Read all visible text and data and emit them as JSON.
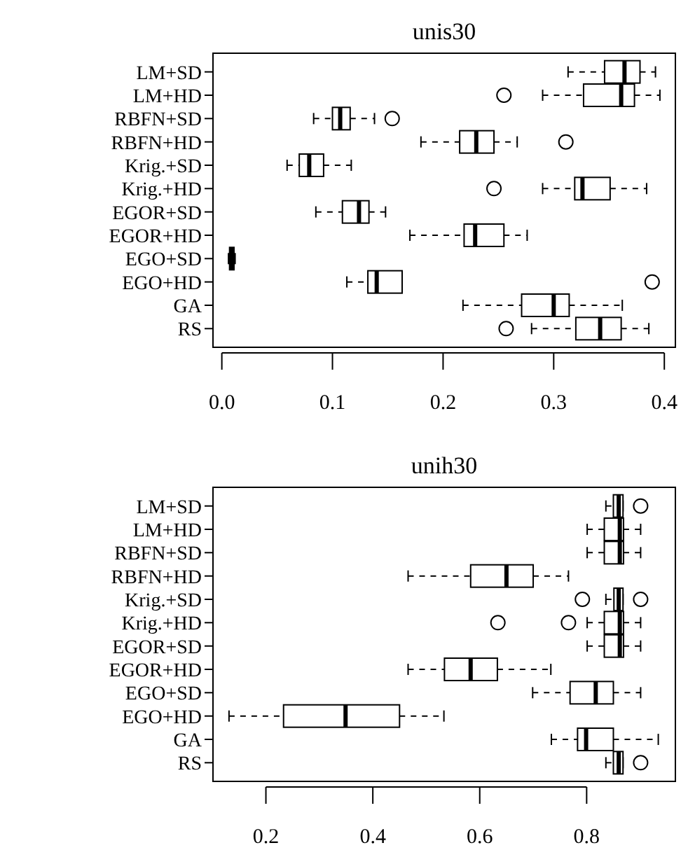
{
  "chart_data": [
    {
      "type": "box",
      "title": "unis30",
      "orientation": "horizontal",
      "categories": [
        "LM+SD",
        "LM+HD",
        "RBFN+SD",
        "RBFN+HD",
        "Krig.+SD",
        "Krig.+HD",
        "EGOR+SD",
        "EGOR+HD",
        "EGO+SD",
        "EGO+HD",
        "GA",
        "RS"
      ],
      "xlim": [
        -0.008,
        0.41
      ],
      "xticks": [
        {
          "value": 0,
          "label": "0.0"
        },
        0.1,
        0.2,
        0.3,
        0.4
      ],
      "grid": false,
      "boxes": [
        {
          "low": 0.313,
          "q1": 0.346,
          "median": 0.364,
          "q3": 0.378,
          "high": 0.392
        },
        {
          "low": 0.29,
          "q1": 0.327,
          "median": 0.361,
          "q3": 0.373,
          "high": 0.396,
          "outliers": [
            0.255
          ]
        },
        {
          "low": 0.083,
          "q1": 0.1,
          "median": 0.107,
          "q3": 0.116,
          "high": 0.138,
          "outliers": [
            0.154
          ]
        },
        {
          "low": 0.18,
          "q1": 0.215,
          "median": 0.23,
          "q3": 0.246,
          "high": 0.267,
          "outliers": [
            0.311
          ]
        },
        {
          "low": 0.059,
          "q1": 0.07,
          "median": 0.079,
          "q3": 0.092,
          "high": 0.117
        },
        {
          "low": 0.29,
          "q1": 0.319,
          "median": 0.326,
          "q3": 0.351,
          "high": 0.384,
          "outliers": [
            0.246
          ]
        },
        {
          "low": 0.085,
          "q1": 0.109,
          "median": 0.124,
          "q3": 0.133,
          "high": 0.148
        },
        {
          "low": 0.17,
          "q1": 0.219,
          "median": 0.229,
          "q3": 0.255,
          "high": 0.276
        },
        {
          "low": 0.006,
          "q1": 0.007,
          "median": 0.009,
          "q3": 0.011,
          "high": 0.012
        },
        {
          "low": 0.113,
          "q1": 0.132,
          "median": 0.14,
          "q3": 0.163,
          "high": 0.163,
          "outliers": [
            0.389
          ]
        },
        {
          "low": 0.218,
          "q1": 0.271,
          "median": 0.3,
          "q3": 0.314,
          "high": 0.362
        },
        {
          "low": 0.28,
          "q1": 0.32,
          "median": 0.342,
          "q3": 0.361,
          "high": 0.386,
          "outliers": [
            0.257
          ]
        }
      ]
    },
    {
      "type": "box",
      "title": "unih30",
      "orientation": "horizontal",
      "categories": [
        "LM+SD",
        "LM+HD",
        "RBFN+SD",
        "RBFN+HD",
        "Krig.+SD",
        "Krig.+HD",
        "EGOR+SD",
        "EGOR+HD",
        "EGO+SD",
        "EGO+HD",
        "GA",
        "RS"
      ],
      "xlim": [
        0.101,
        0.966
      ],
      "xticks": [
        0.2,
        0.4,
        0.6,
        0.8
      ],
      "grid": false,
      "boxes": [
        {
          "low": 0.836,
          "q1": 0.85,
          "median": 0.86,
          "q3": 0.868,
          "high": 0.868,
          "outliers": [
            0.901
          ]
        },
        {
          "low": 0.801,
          "q1": 0.833,
          "median": 0.862,
          "q3": 0.869,
          "high": 0.901
        },
        {
          "low": 0.801,
          "q1": 0.833,
          "median": 0.862,
          "q3": 0.869,
          "high": 0.901
        },
        {
          "low": 0.466,
          "q1": 0.583,
          "median": 0.65,
          "q3": 0.7,
          "high": 0.766
        },
        {
          "low": 0.836,
          "q1": 0.851,
          "median": 0.86,
          "q3": 0.868,
          "high": 0.868,
          "outliers": [
            0.792,
            0.901
          ]
        },
        {
          "low": 0.801,
          "q1": 0.833,
          "median": 0.862,
          "q3": 0.869,
          "high": 0.901,
          "outliers": [
            0.634,
            0.766
          ]
        },
        {
          "low": 0.801,
          "q1": 0.833,
          "median": 0.862,
          "q3": 0.869,
          "high": 0.901
        },
        {
          "low": 0.466,
          "q1": 0.534,
          "median": 0.583,
          "q3": 0.633,
          "high": 0.733
        },
        {
          "low": 0.699,
          "q1": 0.769,
          "median": 0.817,
          "q3": 0.85,
          "high": 0.901
        },
        {
          "low": 0.131,
          "q1": 0.233,
          "median": 0.349,
          "q3": 0.45,
          "high": 0.533
        },
        {
          "low": 0.734,
          "q1": 0.783,
          "median": 0.799,
          "q3": 0.85,
          "high": 0.934
        },
        {
          "low": 0.836,
          "q1": 0.85,
          "median": 0.86,
          "q3": 0.868,
          "high": 0.868,
          "outliers": [
            0.901
          ]
        }
      ]
    }
  ]
}
